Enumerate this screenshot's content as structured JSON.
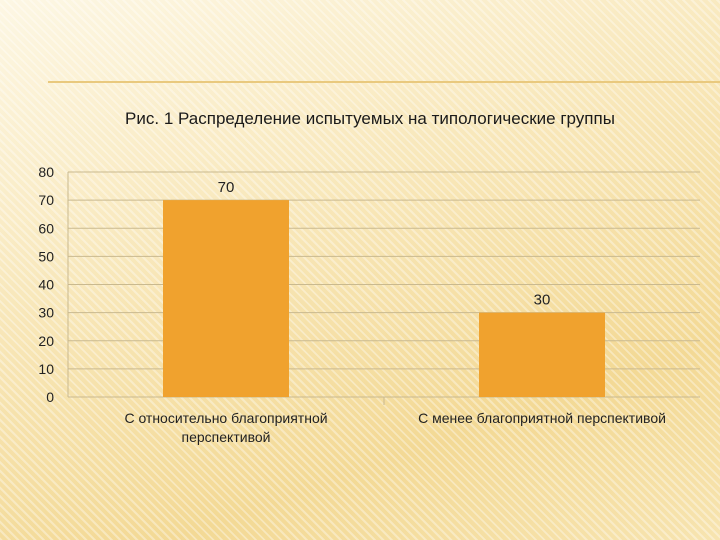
{
  "chart_data": {
    "type": "bar",
    "title": "Рис. 1 Распределение испытуемых на типологические группы",
    "categories": [
      [
        "С относительно благоприятной",
        "перспективой"
      ],
      [
        "С менее благоприятной перспективой"
      ]
    ],
    "values": [
      70,
      30
    ],
    "data_labels": [
      "70",
      "30"
    ],
    "ylim": [
      0,
      80
    ],
    "yticks": [
      0,
      10,
      20,
      30,
      40,
      50,
      60,
      70,
      80
    ],
    "grid": true,
    "bar_color": "#f0a22e",
    "grid_color": "#c9b98f"
  }
}
